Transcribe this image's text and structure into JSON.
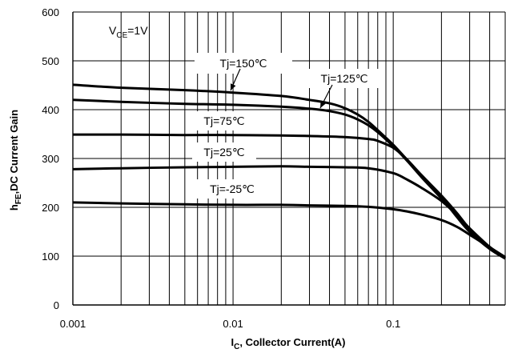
{
  "chart_data": {
    "type": "line",
    "title": "",
    "condition": {
      "main": "V",
      "sub": "CE",
      "tail": "=1V"
    },
    "xlabel": {
      "main": "I",
      "sub": "C",
      "tail": ", Collector Current(A)"
    },
    "ylabel": {
      "main": "h",
      "sub": "FE",
      "tail": ",DC Current Gain"
    },
    "x_scale": "log",
    "xlim": [
      0.001,
      0.5
    ],
    "ylim": [
      0,
      600
    ],
    "grid": true,
    "x_ticks": [
      {
        "value": 0.001,
        "label": "0.001"
      },
      {
        "value": 0.01,
        "label": "0.01"
      },
      {
        "value": 0.1,
        "label": "0.1"
      }
    ],
    "y_ticks": [
      {
        "value": 0,
        "label": "0"
      },
      {
        "value": 100,
        "label": "100"
      },
      {
        "value": 200,
        "label": "200"
      },
      {
        "value": 300,
        "label": "300"
      },
      {
        "value": 400,
        "label": "400"
      },
      {
        "value": 500,
        "label": "500"
      },
      {
        "value": 600,
        "label": "600"
      }
    ],
    "series": [
      {
        "name": "Tj=150℃",
        "x": [
          0.001,
          0.002,
          0.005,
          0.01,
          0.02,
          0.03,
          0.04,
          0.05,
          0.06,
          0.07,
          0.08,
          0.1,
          0.12,
          0.15,
          0.2,
          0.25,
          0.3,
          0.4,
          0.5
        ],
        "y": [
          451,
          445,
          440,
          435,
          428,
          420,
          413,
          403,
          390,
          375,
          358,
          328,
          300,
          265,
          220,
          180,
          150,
          115,
          95
        ]
      },
      {
        "name": "Tj=125℃",
        "x": [
          0.001,
          0.002,
          0.005,
          0.01,
          0.02,
          0.03,
          0.04,
          0.05,
          0.06,
          0.07,
          0.08,
          0.1,
          0.12,
          0.15,
          0.2,
          0.25,
          0.3,
          0.4,
          0.5
        ],
        "y": [
          420,
          416,
          412,
          410,
          406,
          402,
          397,
          390,
          380,
          368,
          354,
          325,
          298,
          262,
          218,
          182,
          152,
          116,
          96
        ]
      },
      {
        "name": "Tj=75℃",
        "x": [
          0.001,
          0.002,
          0.005,
          0.01,
          0.02,
          0.03,
          0.05,
          0.07,
          0.08,
          0.1,
          0.12,
          0.15,
          0.2,
          0.25,
          0.3,
          0.4,
          0.5
        ],
        "y": [
          349,
          349,
          348,
          348,
          347,
          346,
          344,
          340,
          336,
          322,
          300,
          266,
          224,
          188,
          156,
          118,
          96
        ]
      },
      {
        "name": "Tj=25℃",
        "x": [
          0.001,
          0.002,
          0.005,
          0.01,
          0.02,
          0.03,
          0.05,
          0.07,
          0.1,
          0.12,
          0.15,
          0.2,
          0.25,
          0.3,
          0.4,
          0.5
        ],
        "y": [
          278,
          280,
          282,
          283,
          284,
          283,
          282,
          280,
          270,
          258,
          240,
          213,
          184,
          157,
          119,
          97
        ]
      },
      {
        "name": "Tj=-25℃",
        "x": [
          0.001,
          0.002,
          0.005,
          0.01,
          0.02,
          0.03,
          0.05,
          0.07,
          0.1,
          0.12,
          0.15,
          0.2,
          0.25,
          0.3,
          0.4,
          0.5
        ],
        "y": [
          210,
          208,
          206,
          205,
          205,
          204,
          203,
          201,
          196,
          192,
          185,
          174,
          160,
          144,
          118,
          98
        ]
      }
    ],
    "labels": [
      {
        "text": "Tj=150℃",
        "series": 0,
        "arrow": true
      },
      {
        "text": "Tj=125℃",
        "series": 1,
        "arrow": true
      },
      {
        "text": "Tj=75℃",
        "series": 2,
        "arrow": false
      },
      {
        "text": "Tj=25℃",
        "series": 3,
        "arrow": false
      },
      {
        "text": "Tj=-25℃",
        "series": 4,
        "arrow": false
      }
    ]
  }
}
